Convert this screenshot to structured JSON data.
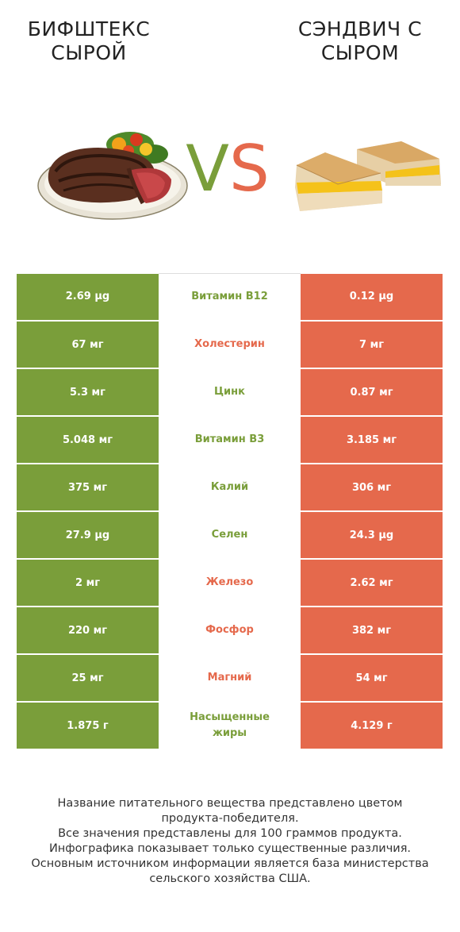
{
  "left_product": {
    "line1": "БИФШТЕКС",
    "line2": "СЫРОЙ"
  },
  "right_product": {
    "line1": "СЭНДВИЧ С",
    "line2": "СЫРОМ"
  },
  "vs": {
    "v": "V",
    "s": "S"
  },
  "colors": {
    "left": "#7a9e3a",
    "right": "#e5694c"
  },
  "rows": [
    {
      "left": "2.69 µg",
      "name": "Витамин B12",
      "right": "0.12 µg",
      "winner": "left"
    },
    {
      "left": "67 мг",
      "name": "Холестерин",
      "right": "7 мг",
      "winner": "right"
    },
    {
      "left": "5.3 мг",
      "name": "Цинк",
      "right": "0.87 мг",
      "winner": "left"
    },
    {
      "left": "5.048 мг",
      "name": "Витамин B3",
      "right": "3.185 мг",
      "winner": "left"
    },
    {
      "left": "375 мг",
      "name": "Калий",
      "right": "306 мг",
      "winner": "left"
    },
    {
      "left": "27.9 µg",
      "name": "Селен",
      "right": "24.3 µg",
      "winner": "left"
    },
    {
      "left": "2 мг",
      "name": "Железо",
      "right": "2.62 мг",
      "winner": "right"
    },
    {
      "left": "220 мг",
      "name": "Фосфор",
      "right": "382 мг",
      "winner": "right"
    },
    {
      "left": "25 мг",
      "name": "Магний",
      "right": "54 мг",
      "winner": "right"
    },
    {
      "left": "1.875 г",
      "name_line1": "Насыщенные",
      "name_line2": "жиры",
      "right": "4.129 г",
      "winner": "left"
    }
  ],
  "footer": {
    "line1": "Название питательного вещества представлено цветом",
    "line2": "продукта-победителя.",
    "line3": "Все значения представлены для 100 граммов продукта.",
    "line4": "Инфографика показывает только существенные различия.",
    "line5": "Основным источником информации является база министерства",
    "line6": "сельского хозяйства США."
  }
}
